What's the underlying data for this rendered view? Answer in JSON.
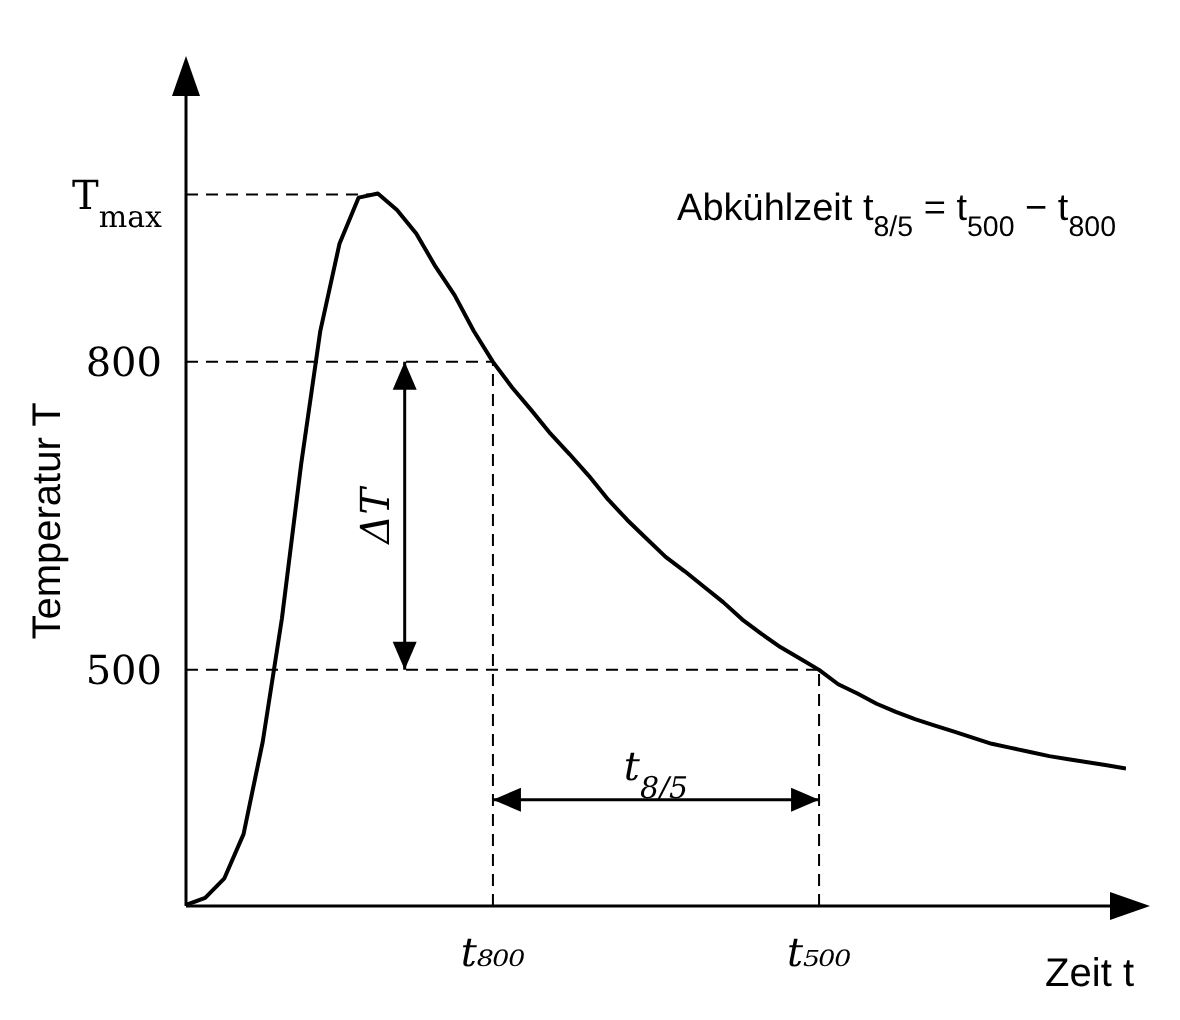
{
  "chart_data": {
    "type": "line",
    "xlabel": "Zeit t",
    "ylabel": "Temperatur T",
    "categories": [
      null,
      null,
      null,
      null,
      null,
      null,
      null,
      null,
      null,
      null,
      null,
      null,
      null,
      null,
      null,
      null,
      "t₈₀₀",
      null,
      null,
      null,
      null,
      null,
      null,
      null,
      null,
      null,
      null,
      null,
      null,
      null,
      null,
      null,
      null,
      "t₅₀₀",
      null,
      null,
      null,
      null,
      null,
      null,
      null,
      null,
      null,
      null,
      null,
      null,
      null,
      null,
      null,
      null
    ],
    "series": [
      {
        "color": "#000000",
        "values": [
          271,
          278,
          297,
          340,
          430,
          550,
          700,
          830,
          915,
          960,
          964,
          948,
          925,
          893,
          865,
          830,
          800,
          775,
          753,
          730,
          710,
          689,
          666,
          646,
          628,
          610,
          596,
          581,
          566,
          549,
          535,
          522,
          511,
          500,
          486,
          477,
          467,
          459,
          452,
          446,
          440,
          434,
          428,
          424,
          420,
          416,
          413,
          410,
          407,
          404
        ]
      }
    ],
    "ylim": [
      270,
      1020
    ],
    "yticks": [
      500,
      800,
      {
        "value": 963,
        "label": "T$_{max}$"
      }
    ],
    "ref_lines": [
      {
        "axis": "y",
        "value": 963,
        "line_style": "dashed"
      },
      {
        "axis": "y",
        "value": 800,
        "line_style": "dashed"
      },
      {
        "axis": "y",
        "value": 500,
        "line_style": "dashed"
      },
      {
        "axis": "x",
        "value": "t₈₀₀",
        "line_style": "dashed"
      },
      {
        "axis": "x",
        "value": "t₅₀₀",
        "line_style": "dashed"
      }
    ],
    "annotations": [
      "Abkühlzeit t$_{8/5}$ = t$_{500}$ − t$_{800}$",
      "ΔT",
      "t$_{8/5}$"
    ],
    "marker": "none",
    "line_style": "solid"
  }
}
